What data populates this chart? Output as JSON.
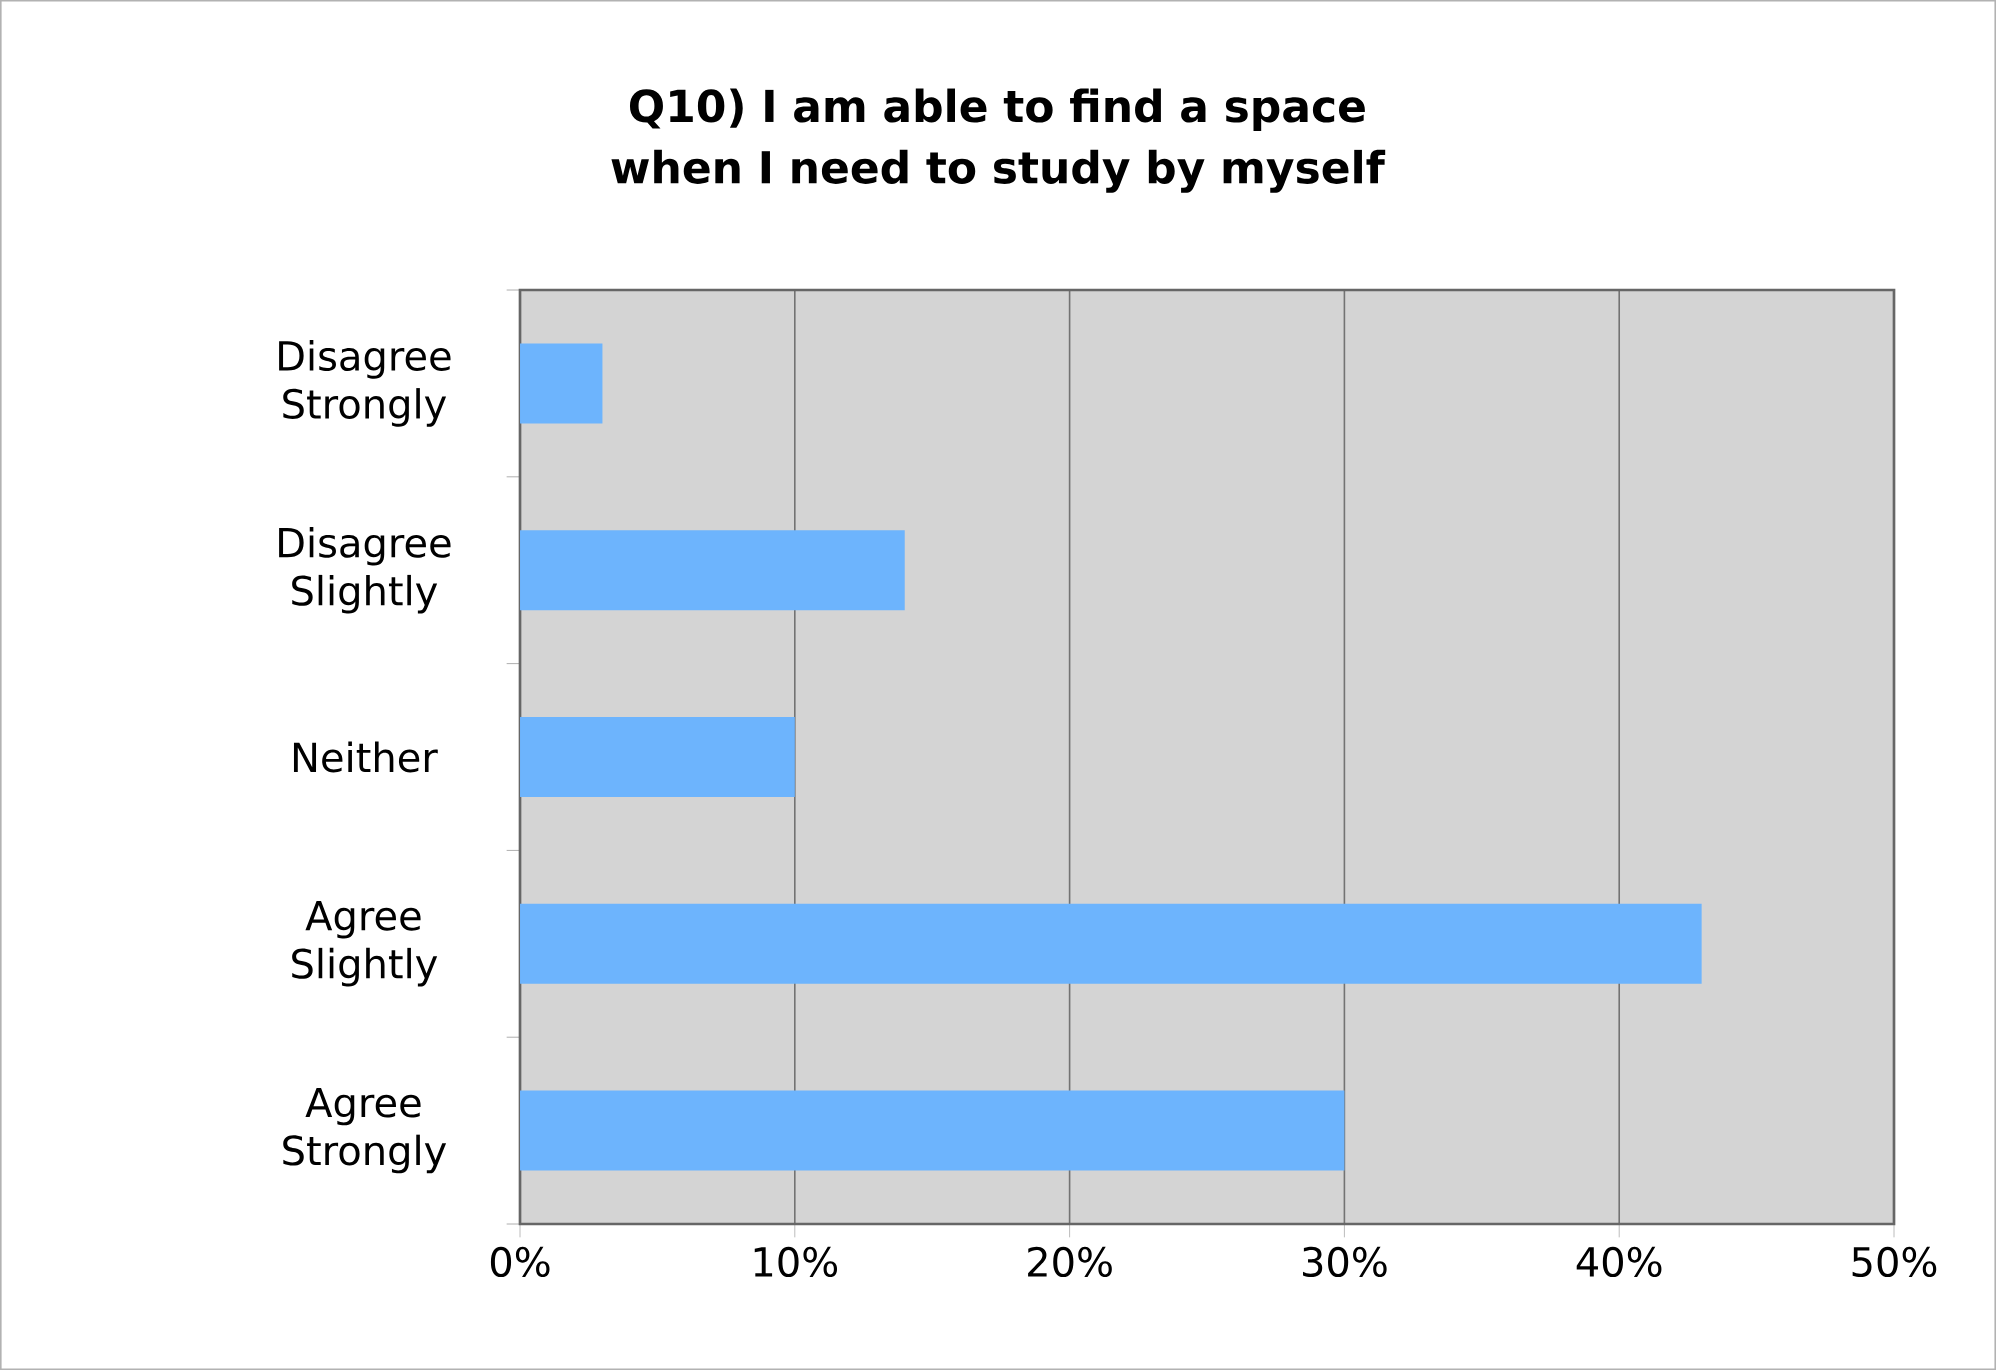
{
  "chart_data": {
    "type": "bar",
    "orientation": "horizontal",
    "title": "Q10) I am able to find a space when I need to study by myself",
    "categories": [
      "Disagree Strongly",
      "Disagree Slightly",
      "Neither",
      "Agree Slightly",
      "Agree Strongly"
    ],
    "values": [
      3,
      14,
      10,
      43,
      30
    ],
    "color": "#6db4fd",
    "xlim": [
      0,
      50
    ],
    "xticks": [
      {
        "value": 0,
        "label": "0%"
      },
      {
        "value": 10,
        "label": "10%"
      },
      {
        "value": 20,
        "label": "20%"
      },
      {
        "value": 30,
        "label": "30%"
      },
      {
        "value": 40,
        "label": "40%"
      },
      {
        "value": 50,
        "label": "50%"
      }
    ],
    "grid": "x"
  }
}
